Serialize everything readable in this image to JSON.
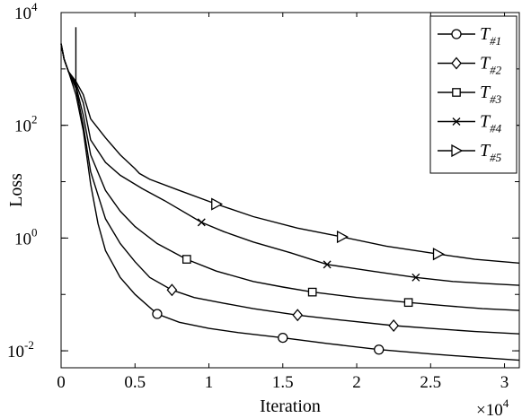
{
  "chart_data": {
    "type": "line",
    "xlabel": "Iteration",
    "ylabel": "Loss",
    "x_multiplier": "×10⁴",
    "x_multiplier_base": "×10",
    "x_multiplier_exp": "4",
    "xlim": [
      0,
      31000
    ],
    "ylim": [
      0.005,
      10000
    ],
    "yscale": "log",
    "grid": false,
    "legend_position": "top-right",
    "xticks": [
      {
        "value": 0,
        "label": "0"
      },
      {
        "value": 5000,
        "label": "0.5"
      },
      {
        "value": 10000,
        "label": "1"
      },
      {
        "value": 15000,
        "label": "1.5"
      },
      {
        "value": 20000,
        "label": "2"
      },
      {
        "value": 25000,
        "label": "2.5"
      },
      {
        "value": 30000,
        "label": "3"
      }
    ],
    "yticks": [
      {
        "value": 0.01,
        "base": "10",
        "exp": "-2"
      },
      {
        "value": 1,
        "base": "10",
        "exp": "0"
      },
      {
        "value": 100,
        "base": "10",
        "exp": "2"
      },
      {
        "value": 10000,
        "base": "10",
        "exp": "4"
      }
    ],
    "series": [
      {
        "name": "T#1",
        "base": "T",
        "sub": "#1",
        "marker": "circle",
        "points": [
          [
            0,
            2800
          ],
          [
            200,
            1500
          ],
          [
            500,
            900
          ],
          [
            1000,
            350
          ],
          [
            1500,
            80
          ],
          [
            2000,
            9
          ],
          [
            2500,
            1.8
          ],
          [
            3000,
            0.6
          ],
          [
            4000,
            0.2
          ],
          [
            5000,
            0.1
          ],
          [
            6500,
            0.045
          ],
          [
            8000,
            0.032
          ],
          [
            10000,
            0.025
          ],
          [
            12000,
            0.021
          ],
          [
            15000,
            0.017
          ],
          [
            18000,
            0.0135
          ],
          [
            21500,
            0.0105
          ],
          [
            25000,
            0.0088
          ],
          [
            28000,
            0.0077
          ],
          [
            31000,
            0.0068
          ]
        ],
        "markers_x": [
          6500,
          15000,
          21500
        ]
      },
      {
        "name": "T#2",
        "base": "T",
        "sub": "#2",
        "marker": "diamond",
        "points": [
          [
            0,
            2800
          ],
          [
            200,
            1500
          ],
          [
            500,
            900
          ],
          [
            1000,
            450
          ],
          [
            1500,
            100
          ],
          [
            2000,
            15
          ],
          [
            3000,
            2.2
          ],
          [
            4000,
            0.8
          ],
          [
            5000,
            0.38
          ],
          [
            6000,
            0.2
          ],
          [
            7500,
            0.12
          ],
          [
            9000,
            0.088
          ],
          [
            11000,
            0.07
          ],
          [
            13000,
            0.056
          ],
          [
            16000,
            0.043
          ],
          [
            19000,
            0.035
          ],
          [
            22500,
            0.028
          ],
          [
            25000,
            0.025
          ],
          [
            28000,
            0.022
          ],
          [
            31000,
            0.02
          ]
        ],
        "markers_x": [
          7500,
          16000,
          22500
        ]
      },
      {
        "name": "T#3",
        "base": "T",
        "sub": "#3",
        "marker": "square",
        "points": [
          [
            0,
            2800
          ],
          [
            200,
            1500
          ],
          [
            500,
            900
          ],
          [
            1000,
            500
          ],
          [
            1500,
            150
          ],
          [
            2000,
            30
          ],
          [
            3000,
            7
          ],
          [
            4000,
            3
          ],
          [
            5000,
            1.6
          ],
          [
            6500,
            0.8
          ],
          [
            8500,
            0.42
          ],
          [
            10500,
            0.26
          ],
          [
            13000,
            0.17
          ],
          [
            15000,
            0.135
          ],
          [
            17000,
            0.11
          ],
          [
            20000,
            0.088
          ],
          [
            23500,
            0.072
          ],
          [
            26000,
            0.063
          ],
          [
            28500,
            0.056
          ],
          [
            31000,
            0.052
          ]
        ],
        "markers_x": [
          8500,
          17000,
          23500
        ]
      },
      {
        "name": "T#4",
        "base": "T",
        "sub": "#4",
        "marker": "x",
        "points": [
          [
            0,
            2800
          ],
          [
            200,
            1500
          ],
          [
            500,
            900
          ],
          [
            1000,
            550
          ],
          [
            1500,
            250
          ],
          [
            2000,
            55
          ],
          [
            3000,
            22
          ],
          [
            4000,
            13
          ],
          [
            5500,
            7.5
          ],
          [
            7000,
            4.6
          ],
          [
            9500,
            1.9
          ],
          [
            11000,
            1.3
          ],
          [
            13000,
            0.85
          ],
          [
            15500,
            0.55
          ],
          [
            18000,
            0.34
          ],
          [
            21000,
            0.26
          ],
          [
            24000,
            0.2
          ],
          [
            26500,
            0.17
          ],
          [
            29000,
            0.155
          ],
          [
            31000,
            0.145
          ]
        ],
        "markers_x": [
          9500,
          18000,
          24000
        ]
      },
      {
        "name": "T#5",
        "base": "T",
        "sub": "#5",
        "marker": "triangle-right",
        "points": [
          [
            0,
            2800
          ],
          [
            200,
            1500
          ],
          [
            500,
            900
          ],
          [
            1000,
            600
          ],
          [
            1500,
            350
          ],
          [
            2000,
            130
          ],
          [
            3000,
            60
          ],
          [
            4000,
            30
          ],
          [
            5000,
            17
          ],
          [
            5300,
            14
          ],
          [
            6000,
            11
          ],
          [
            8000,
            7
          ],
          [
            10500,
            4
          ],
          [
            13000,
            2.4
          ],
          [
            16000,
            1.5
          ],
          [
            19000,
            1.05
          ],
          [
            22000,
            0.72
          ],
          [
            25500,
            0.52
          ],
          [
            28000,
            0.42
          ],
          [
            31000,
            0.36
          ]
        ],
        "markers_x": [
          10500,
          19000,
          25500
        ]
      }
    ],
    "spike": {
      "x": 1000,
      "from": 500,
      "to": 5500
    }
  }
}
